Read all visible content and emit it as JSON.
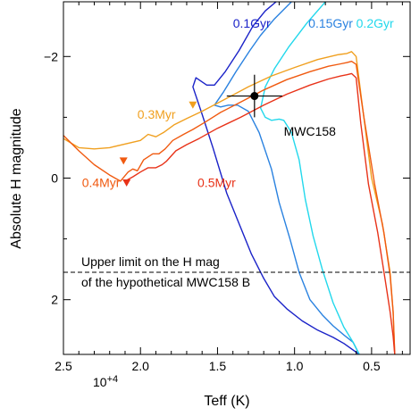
{
  "chart_data": {
    "type": "line",
    "xlabel": "Teff (K)",
    "ylabel": "Absolute H magnitude",
    "x_multiplier_label": "10",
    "x_multiplier_exp": "+4",
    "xlim": [
      2.5,
      0.25
    ],
    "ylim": [
      2.9,
      -2.9
    ],
    "x_reversed": true,
    "y_reversed": true,
    "x_ticks": [
      2.5,
      2.0,
      1.5,
      1.0,
      0.5
    ],
    "x_tick_labels": [
      "2.5",
      "2.0",
      "1.5",
      "1.0",
      "0.5"
    ],
    "x_minor_ticks": [
      2.4,
      2.3,
      2.2,
      2.1,
      1.9,
      1.8,
      1.7,
      1.6,
      1.4,
      1.3,
      1.2,
      1.1,
      0.9,
      0.8,
      0.7,
      0.6,
      0.4,
      0.3
    ],
    "y_ticks": [
      -2,
      0,
      2
    ],
    "y_tick_labels": [
      "−2",
      "0",
      "2"
    ],
    "y_minor_ticks": [
      -1,
      1
    ],
    "grid": false,
    "hline": {
      "y": 1.55,
      "style": "dashed",
      "label_line1": "Upper limit on the H mag",
      "label_line2": "of the hypothetical MWC158 B"
    },
    "point": {
      "label": "MWC158",
      "x": 1.26,
      "y": -1.35,
      "xerr": 0.18,
      "yerr_top": -1.7,
      "yerr_bottom": -1.0
    },
    "series": [
      {
        "name": "0.1Gyr",
        "color": "#1a22c8",
        "x": [
          0.58,
          0.68,
          0.75,
          0.85,
          0.95,
          1.05,
          1.13,
          1.2,
          1.28,
          1.36,
          1.44,
          1.53,
          1.6,
          1.66,
          1.64,
          1.57,
          1.52,
          1.45,
          1.36,
          1.27,
          1.19,
          1.12
        ],
        "y": [
          2.9,
          2.72,
          2.62,
          2.5,
          2.35,
          2.15,
          1.95,
          1.65,
          1.25,
          0.75,
          0.25,
          -0.5,
          -1.05,
          -1.5,
          -1.65,
          -1.53,
          -1.53,
          -1.75,
          -2.1,
          -2.5,
          -2.75,
          -2.9
        ]
      },
      {
        "name": "0.15Gyr",
        "color": "#2a82e0",
        "x": [
          0.58,
          0.62,
          0.68,
          0.75,
          0.82,
          0.9,
          0.97,
          1.03,
          1.1,
          1.15,
          1.23,
          1.3,
          1.37,
          1.43,
          1.48,
          1.52,
          1.46,
          1.38,
          1.29,
          1.22,
          1.13,
          1.02
        ],
        "y": [
          2.9,
          2.7,
          2.58,
          2.43,
          2.25,
          2.0,
          1.55,
          1.0,
          0.4,
          -0.15,
          -0.75,
          -1.1,
          -1.2,
          -1.2,
          -1.17,
          -1.2,
          -1.42,
          -1.75,
          -2.1,
          -2.35,
          -2.62,
          -2.9
        ]
      },
      {
        "name": "0.2Gyr",
        "color": "#22d8ec",
        "x": [
          0.58,
          0.62,
          0.68,
          0.75,
          0.82,
          0.88,
          0.93,
          0.97,
          1.02,
          1.07,
          1.1,
          1.15,
          1.19,
          1.22,
          1.19,
          1.13,
          1.04,
          0.92,
          0.8
        ],
        "y": [
          2.9,
          2.7,
          2.45,
          2.05,
          1.5,
          0.95,
          0.35,
          -0.3,
          -0.75,
          -0.95,
          -0.97,
          -0.95,
          -1.0,
          -1.15,
          -1.5,
          -1.8,
          -2.15,
          -2.55,
          -2.9
        ]
      },
      {
        "name": "0.3Myr",
        "color": "#f0a020",
        "x": [
          2.5,
          2.4,
          2.3,
          2.2,
          2.0,
          1.95,
          1.9,
          1.85,
          1.78,
          1.7,
          1.6,
          1.45,
          1.3,
          1.15,
          1.0,
          0.85,
          0.72,
          0.66,
          0.63,
          0.6,
          0.56,
          0.5,
          0.43,
          0.38,
          0.36,
          0.35
        ],
        "y": [
          -0.65,
          -0.5,
          -0.48,
          -0.5,
          -0.62,
          -0.72,
          -0.68,
          -0.75,
          -0.88,
          -0.98,
          -1.1,
          -1.3,
          -1.5,
          -1.68,
          -1.82,
          -1.95,
          -2.03,
          -2.05,
          -2.08,
          -2.0,
          -1.2,
          0.0,
          0.75,
          1.55,
          2.2,
          2.9
        ]
      },
      {
        "name": "0.5Myr",
        "color": "#f05a10",
        "x": [
          2.5,
          2.4,
          2.3,
          2.2,
          2.13,
          2.08,
          2.05,
          2.02,
          1.98,
          1.92,
          1.88,
          1.84,
          1.79,
          1.72,
          1.66,
          1.58,
          1.48,
          1.35,
          1.2,
          1.05,
          0.9,
          0.78,
          0.7,
          0.66,
          0.63,
          0.6,
          0.55,
          0.48,
          0.42,
          0.38,
          0.36,
          0.35
        ],
        "y": [
          -0.7,
          -0.45,
          -0.22,
          -0.05,
          0.05,
          -0.1,
          -0.15,
          -0.12,
          -0.3,
          -0.4,
          -0.4,
          -0.48,
          -0.62,
          -0.72,
          -0.8,
          -0.92,
          -1.08,
          -1.25,
          -1.45,
          -1.62,
          -1.75,
          -1.84,
          -1.88,
          -1.9,
          -1.92,
          -1.87,
          -1.0,
          0.1,
          0.9,
          1.6,
          2.2,
          2.9
        ]
      },
      {
        "name": "0.4Myr",
        "color": "#e83218",
        "x": [
          2.1,
          2.05,
          2.0,
          1.95,
          1.9,
          1.86,
          1.83,
          1.77,
          1.7,
          1.62,
          1.5,
          1.35,
          1.2,
          1.05,
          0.9,
          0.78,
          0.7,
          0.66,
          0.63,
          0.6,
          0.57,
          0.52,
          0.46,
          0.41,
          0.38,
          0.36,
          0.35
        ],
        "y": [
          0.05,
          -0.02,
          -0.1,
          -0.17,
          -0.17,
          -0.22,
          -0.28,
          -0.45,
          -0.55,
          -0.65,
          -0.82,
          -1.0,
          -1.2,
          -1.38,
          -1.53,
          -1.63,
          -1.68,
          -1.7,
          -1.72,
          -1.65,
          -0.9,
          0.1,
          0.9,
          1.7,
          2.2,
          2.6,
          2.9
        ]
      }
    ],
    "markers": [
      {
        "series": "0.3Myr",
        "x": 1.66,
        "y": -1.2,
        "shape": "triangle-down"
      },
      {
        "series": "0.5Myr",
        "x": 2.11,
        "y": -0.28,
        "shape": "triangle-down"
      },
      {
        "series": "0.4Myr",
        "x": 2.09,
        "y": 0.08,
        "shape": "triangle-down"
      }
    ],
    "annotations": [
      {
        "text": "0.1Gyr",
        "color": "#1a22c8",
        "x": 1.4,
        "y": -2.55
      },
      {
        "text": "0.15Gyr",
        "color": "#2a82e0",
        "x": 0.91,
        "y": -2.55
      },
      {
        "text": "0.2Gyr",
        "color": "#22d8ec",
        "x": 0.6,
        "y": -2.55
      },
      {
        "text": "0.3Myr",
        "color": "#f0a020",
        "x": 2.02,
        "y": -1.05
      },
      {
        "text": "0.4Myr",
        "color": "#f05a10",
        "x": 2.38,
        "y": 0.07
      },
      {
        "text": "0.5Myr",
        "color": "#e83218",
        "x": 1.63,
        "y": 0.07
      },
      {
        "text": "MWC158",
        "color": "#000000",
        "x": 1.07,
        "y": -0.77
      }
    ]
  }
}
